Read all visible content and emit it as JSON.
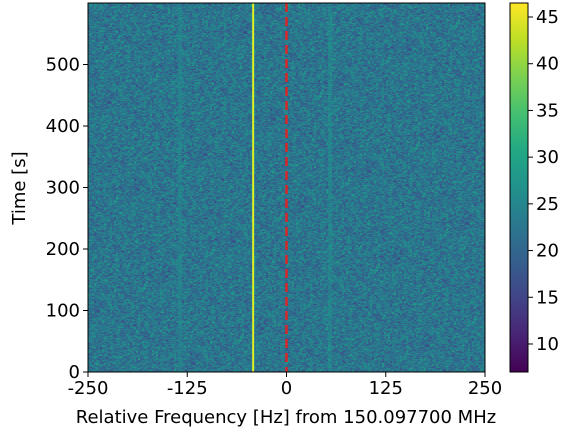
{
  "chart_data": {
    "type": "heatmap",
    "title": "",
    "xlabel": "Relative Frequency [Hz] from 150.097700 MHz",
    "ylabel": "Time [s]",
    "x_range": [
      -250,
      250
    ],
    "y_range": [
      0,
      600
    ],
    "x_ticks": [
      -250,
      -125,
      0,
      125,
      250
    ],
    "x_tick_labels": [
      "-250",
      "-125",
      "0",
      "125",
      "250"
    ],
    "y_ticks": [
      0,
      100,
      200,
      300,
      400,
      500
    ],
    "y_tick_labels": [
      "0",
      "100",
      "200",
      "300",
      "400",
      "500"
    ],
    "colorbar": {
      "colormap": "viridis",
      "range": [
        7,
        46.5
      ],
      "ticks": [
        10,
        15,
        20,
        25,
        30,
        35,
        40,
        45
      ],
      "tick_labels": [
        "10",
        "15",
        "20",
        "25",
        "30",
        "35",
        "40",
        "45"
      ]
    },
    "background_level": 22.5,
    "signal_lines": [
      {
        "frequency_hz": -42,
        "level": 45,
        "color": "#dff025",
        "style": "solid"
      }
    ],
    "faint_lines": [
      {
        "frequency_hz": -135,
        "level": 24.5
      },
      {
        "frequency_hz": 53,
        "level": 25
      }
    ],
    "marker_lines": [
      {
        "frequency_hz": 0,
        "color": "#d62728",
        "style": "dashed"
      }
    ],
    "grid": false,
    "legend": "none"
  }
}
